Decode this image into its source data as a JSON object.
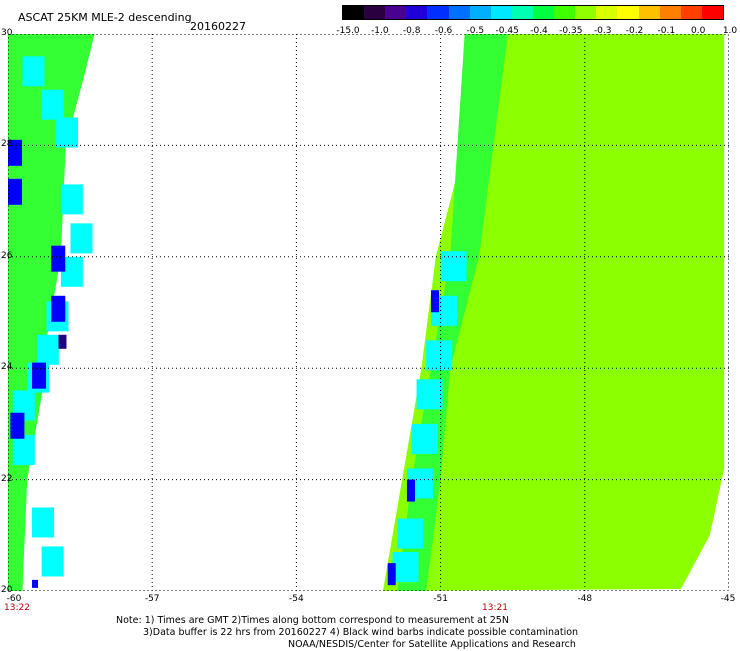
{
  "header": {
    "title": "ASCAT 25KM MLE-2 descending",
    "date": "20160227"
  },
  "colorbar": {
    "labels": [
      "-15.0",
      "-1.0",
      "-0.8",
      "-0.6",
      "-0.5",
      "-0.45",
      "-0.4",
      "-0.35",
      "-0.3",
      "-0.2",
      "-0.1",
      "0.0",
      "1.0"
    ],
    "colors": [
      "#000000",
      "#2a0040",
      "#4a0090",
      "#2000d8",
      "#0030ff",
      "#0070ff",
      "#00b0ff",
      "#00e8ff",
      "#00ffb0",
      "#00ff40",
      "#40ff00",
      "#90ff00",
      "#d8ff00",
      "#ffff00",
      "#ffc000",
      "#ff8000",
      "#ff4000",
      "#ff0000"
    ]
  },
  "axes": {
    "lat_labels": [
      "30",
      "28",
      "26",
      "24",
      "22",
      "20"
    ],
    "lon_labels": [
      "-60",
      "-57",
      "-54",
      "-51",
      "-48",
      "-45"
    ],
    "lat_range": [
      20,
      30
    ],
    "lon_range": [
      -60,
      -45
    ],
    "grid": true
  },
  "times": {
    "left": "13:22",
    "right": "13:21"
  },
  "notes": {
    "line1": "Note: 1) Times are GMT 2)Times along bottom correspond to measurement at 25N",
    "line2": "3)Data buffer is 22 hrs from 20160227 4) Black wind barbs indicate possible contamination",
    "line3": "NOAA/NESDIS/Center for Satellite Applications and Research"
  },
  "palette": {
    "lime": "#8cff00",
    "green": "#33ff33",
    "cyan": "#00ffff",
    "blue": "#0000ff",
    "navy": "#220080"
  },
  "chart_data": {
    "type": "heatmap",
    "title": "ASCAT 25KM MLE-2 descending",
    "xlim": [
      -60,
      -45
    ],
    "ylim": [
      20,
      30
    ],
    "swaths": [
      {
        "time": "13:22",
        "lat_lon_east_edge": [
          [
            30,
            -58.2
          ],
          [
            29.3,
            -58.4
          ],
          [
            28,
            -58.8
          ],
          [
            26,
            -58.9
          ],
          [
            24.5,
            -59.2
          ],
          [
            24,
            -59.2
          ],
          [
            22,
            -59.6
          ],
          [
            20,
            -59.7
          ]
        ],
        "dominant_class": "-0.4 to -0.35"
      },
      {
        "time": "13:21",
        "lat_lon_west_edge": [
          [
            30,
            -50.0
          ],
          [
            28,
            -50.5
          ],
          [
            26,
            -51.1
          ],
          [
            24,
            -51.4
          ],
          [
            22,
            -51.8
          ],
          [
            20,
            -52.2
          ]
        ],
        "east_edge_lon": -45.1,
        "dominant_class": "-0.2 to -0.1"
      }
    ]
  }
}
